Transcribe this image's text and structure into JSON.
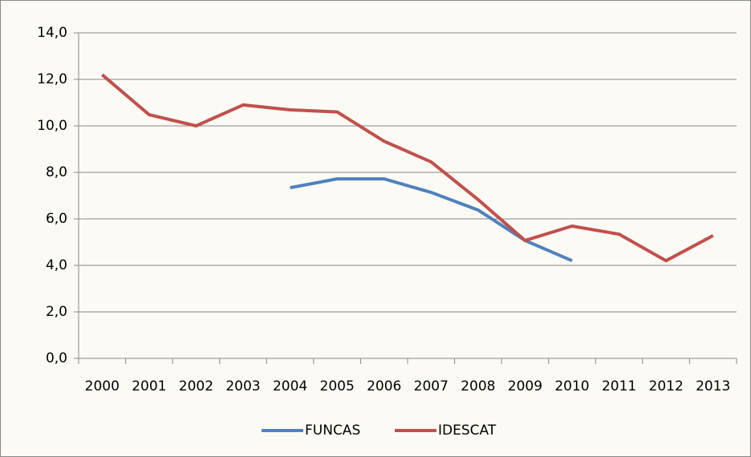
{
  "chart_data": {
    "type": "line",
    "categories": [
      "2000",
      "2001",
      "2002",
      "2003",
      "2004",
      "2005",
      "2006",
      "2007",
      "2008",
      "2009",
      "2010",
      "2011",
      "2012",
      "2013"
    ],
    "series": [
      {
        "name": "FUNCAS",
        "color": "#4f81bd",
        "values": [
          null,
          null,
          null,
          null,
          7.34,
          7.72,
          7.72,
          7.14,
          6.38,
          5.07,
          4.2,
          null,
          null,
          null
        ]
      },
      {
        "name": "IDESCAT",
        "color": "#c0504d",
        "values": [
          12.2,
          10.48,
          10.0,
          10.9,
          10.69,
          10.6,
          9.34,
          8.45,
          6.83,
          5.07,
          5.69,
          5.34,
          4.2,
          5.28
        ]
      }
    ],
    "ylim": [
      0,
      14
    ],
    "yticks": [
      {
        "value": 0,
        "label": "0,0"
      },
      {
        "value": 2,
        "label": "2,0"
      },
      {
        "value": 4,
        "label": "4,0"
      },
      {
        "value": 6,
        "label": "6,0"
      },
      {
        "value": 8,
        "label": "8,0"
      },
      {
        "value": 10,
        "label": "10,0"
      },
      {
        "value": 12,
        "label": "12,0"
      },
      {
        "value": 14,
        "label": "14,0"
      }
    ],
    "grid": true,
    "legend": "bottom"
  }
}
